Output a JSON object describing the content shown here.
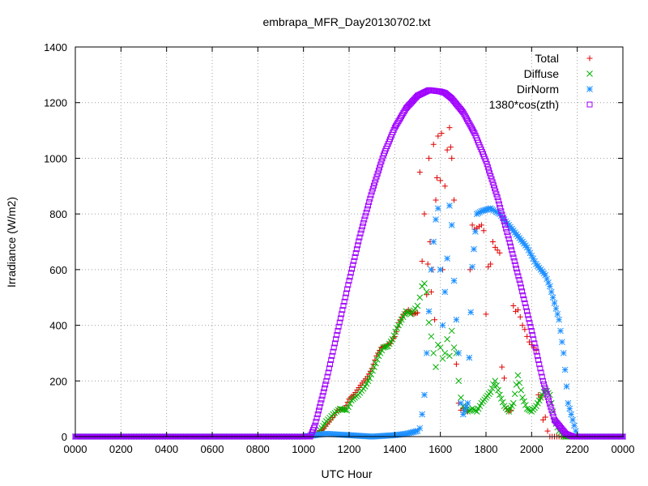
{
  "chart_data": {
    "type": "scatter",
    "title": "embrapa_MFR_Day20130702.txt",
    "xlabel": "UTC Hour",
    "ylabel": "Irradiance (W/m2)",
    "xlim": [
      0,
      24
    ],
    "ylim": [
      0,
      1400
    ],
    "x_ticks": [
      "0000",
      "0200",
      "0400",
      "0600",
      "0800",
      "1000",
      "1200",
      "1400",
      "1600",
      "1800",
      "2000",
      "2200",
      "0000"
    ],
    "y_ticks": [
      0,
      200,
      400,
      600,
      800,
      1000,
      1200,
      1400
    ],
    "grid": true,
    "legend_position": "top-right",
    "series": [
      {
        "name": "Total",
        "marker": "plus",
        "color": "#e00000",
        "x": [
          0,
          2,
          4,
          6,
          8,
          10,
          10.5,
          10.9,
          11.2,
          11.5,
          11.8,
          12.0,
          12.2,
          12.5,
          12.8,
          13.0,
          13.2,
          13.4,
          13.6,
          13.8,
          14.0,
          14.2,
          14.4,
          14.6,
          14.8,
          15.0,
          15.1,
          15.2,
          15.3,
          15.4,
          15.45,
          15.5,
          15.55,
          15.6,
          15.65,
          15.7,
          15.75,
          15.8,
          15.85,
          15.9,
          16.0,
          16.05,
          16.1,
          16.2,
          16.3,
          16.4,
          16.45,
          16.5,
          16.6,
          16.7,
          16.8,
          16.9,
          17.0,
          17.1,
          17.2,
          17.3,
          17.4,
          17.5,
          17.6,
          17.7,
          17.8,
          17.9,
          18.0,
          18.1,
          18.2,
          18.3,
          18.4,
          18.5,
          18.6,
          18.7,
          18.8,
          18.9,
          19.0,
          19.1,
          19.2,
          19.3,
          19.4,
          19.5,
          19.6,
          19.7,
          19.8,
          19.9,
          20.0,
          20.1,
          20.2,
          20.3,
          20.4,
          20.5,
          20.6,
          20.7,
          20.8,
          20.9,
          21.0,
          21.1,
          21.2,
          21.3,
          21.4,
          21.5,
          21.6,
          22.0,
          24
        ],
        "y": [
          0,
          0,
          0,
          0,
          0,
          0,
          5,
          30,
          60,
          95,
          100,
          135,
          150,
          185,
          215,
          245,
          290,
          320,
          325,
          335,
          360,
          410,
          440,
          455,
          440,
          445,
          950,
          630,
          800,
          510,
          620,
          1000,
          700,
          520,
          600,
          1050,
          420,
          850,
          930,
          1080,
          920,
          1090,
          600,
          900,
          1030,
          1110,
          1040,
          1000,
          850,
          260,
          120,
          95,
          100,
          105,
          90,
          600,
          760,
          745,
          750,
          755,
          760,
          740,
          440,
          610,
          620,
          700,
          680,
          670,
          660,
          250,
          210,
          100,
          90,
          95,
          470,
          450,
          455,
          430,
          400,
          385,
          360,
          340,
          330,
          320,
          310,
          150,
          140,
          60,
          70,
          20,
          0,
          0,
          0,
          0,
          0,
          0,
          0,
          0,
          0,
          0,
          0
        ],
        "note_ignore": ""
      },
      {
        "name": "Diffuse",
        "marker": "cross",
        "color": "#00b000",
        "x": [
          0,
          2,
          4,
          6,
          8,
          10,
          10.5,
          10.8,
          11.0,
          11.3,
          11.6,
          11.9,
          12.1,
          12.4,
          12.7,
          12.9,
          13.1,
          13.3,
          13.5,
          13.7,
          13.9,
          14.1,
          14.3,
          14.5,
          14.7,
          14.9,
          15.0,
          15.1,
          15.2,
          15.3,
          15.4,
          15.5,
          15.6,
          15.7,
          15.8,
          15.9,
          16.0,
          16.1,
          16.2,
          16.3,
          16.4,
          16.5,
          16.6,
          16.7,
          16.8,
          16.9,
          17.0,
          17.2,
          17.4,
          17.6,
          17.8,
          18.0,
          18.2,
          18.4,
          18.6,
          18.8,
          19.0,
          19.2,
          19.4,
          19.6,
          19.8,
          20.0,
          20.2,
          20.4,
          20.6,
          20.8,
          21.0,
          21.2,
          21.4,
          22.0,
          24
        ],
        "y": [
          0,
          0,
          0,
          0,
          0,
          0,
          5,
          30,
          55,
          80,
          100,
          95,
          130,
          150,
          180,
          210,
          250,
          290,
          320,
          325,
          350,
          390,
          420,
          450,
          440,
          460,
          470,
          500,
          540,
          550,
          520,
          410,
          360,
          300,
          250,
          330,
          320,
          280,
          300,
          350,
          290,
          380,
          320,
          300,
          200,
          140,
          110,
          90,
          100,
          90,
          120,
          140,
          160,
          200,
          150,
          110,
          90,
          120,
          220,
          140,
          100,
          90,
          110,
          140,
          170,
          150,
          60,
          20,
          0,
          0,
          0
        ],
        "note_ignore": ""
      },
      {
        "name": "DirNorm",
        "marker": "star",
        "color": "#1e90ff",
        "x": [
          0,
          2,
          4,
          6,
          8,
          10,
          11.0,
          12.0,
          13.0,
          14.0,
          14.5,
          15.0,
          15.1,
          15.2,
          15.3,
          15.4,
          15.5,
          15.6,
          15.7,
          15.8,
          15.9,
          16.0,
          16.1,
          16.2,
          16.3,
          16.4,
          16.5,
          16.6,
          16.7,
          16.8,
          16.9,
          17.0,
          17.2,
          17.4,
          17.6,
          17.8,
          18.0,
          18.2,
          18.4,
          18.6,
          18.8,
          19.0,
          19.2,
          19.4,
          19.6,
          19.8,
          20.0,
          20.2,
          20.4,
          20.6,
          20.8,
          21.0,
          21.2,
          21.4,
          21.6,
          22.0,
          24
        ],
        "y": [
          0,
          0,
          0,
          0,
          0,
          0,
          10,
          5,
          0,
          5,
          10,
          20,
          30,
          80,
          150,
          300,
          450,
          600,
          700,
          780,
          820,
          600,
          400,
          520,
          640,
          830,
          760,
          560,
          420,
          300,
          120,
          80,
          120,
          610,
          800,
          810,
          815,
          820,
          810,
          800,
          780,
          760,
          740,
          720,
          700,
          680,
          650,
          620,
          600,
          580,
          540,
          480,
          420,
          300,
          120,
          0,
          0
        ],
        "note_ignore": ""
      },
      {
        "name": "1380*cos(zth)",
        "marker": "square",
        "color": "#a000ff",
        "curve": true,
        "x": [
          0,
          2,
          4,
          6,
          8,
          10,
          10.3,
          10.5,
          11.0,
          11.5,
          12.0,
          12.5,
          13.0,
          13.5,
          14.0,
          14.5,
          15.0,
          15.5,
          16.0,
          16.2,
          16.5,
          17.0,
          17.5,
          18.0,
          18.5,
          19.0,
          19.5,
          20.0,
          20.5,
          21.0,
          21.5,
          21.8,
          22.0,
          22.2,
          24
        ],
        "y": [
          0,
          0,
          0,
          0,
          0,
          0,
          0,
          40,
          200,
          380,
          560,
          730,
          880,
          1010,
          1110,
          1180,
          1225,
          1245,
          1240,
          1235,
          1215,
          1165,
          1090,
          990,
          860,
          710,
          550,
          380,
          200,
          60,
          10,
          0,
          0,
          0,
          0
        ]
      }
    ]
  }
}
